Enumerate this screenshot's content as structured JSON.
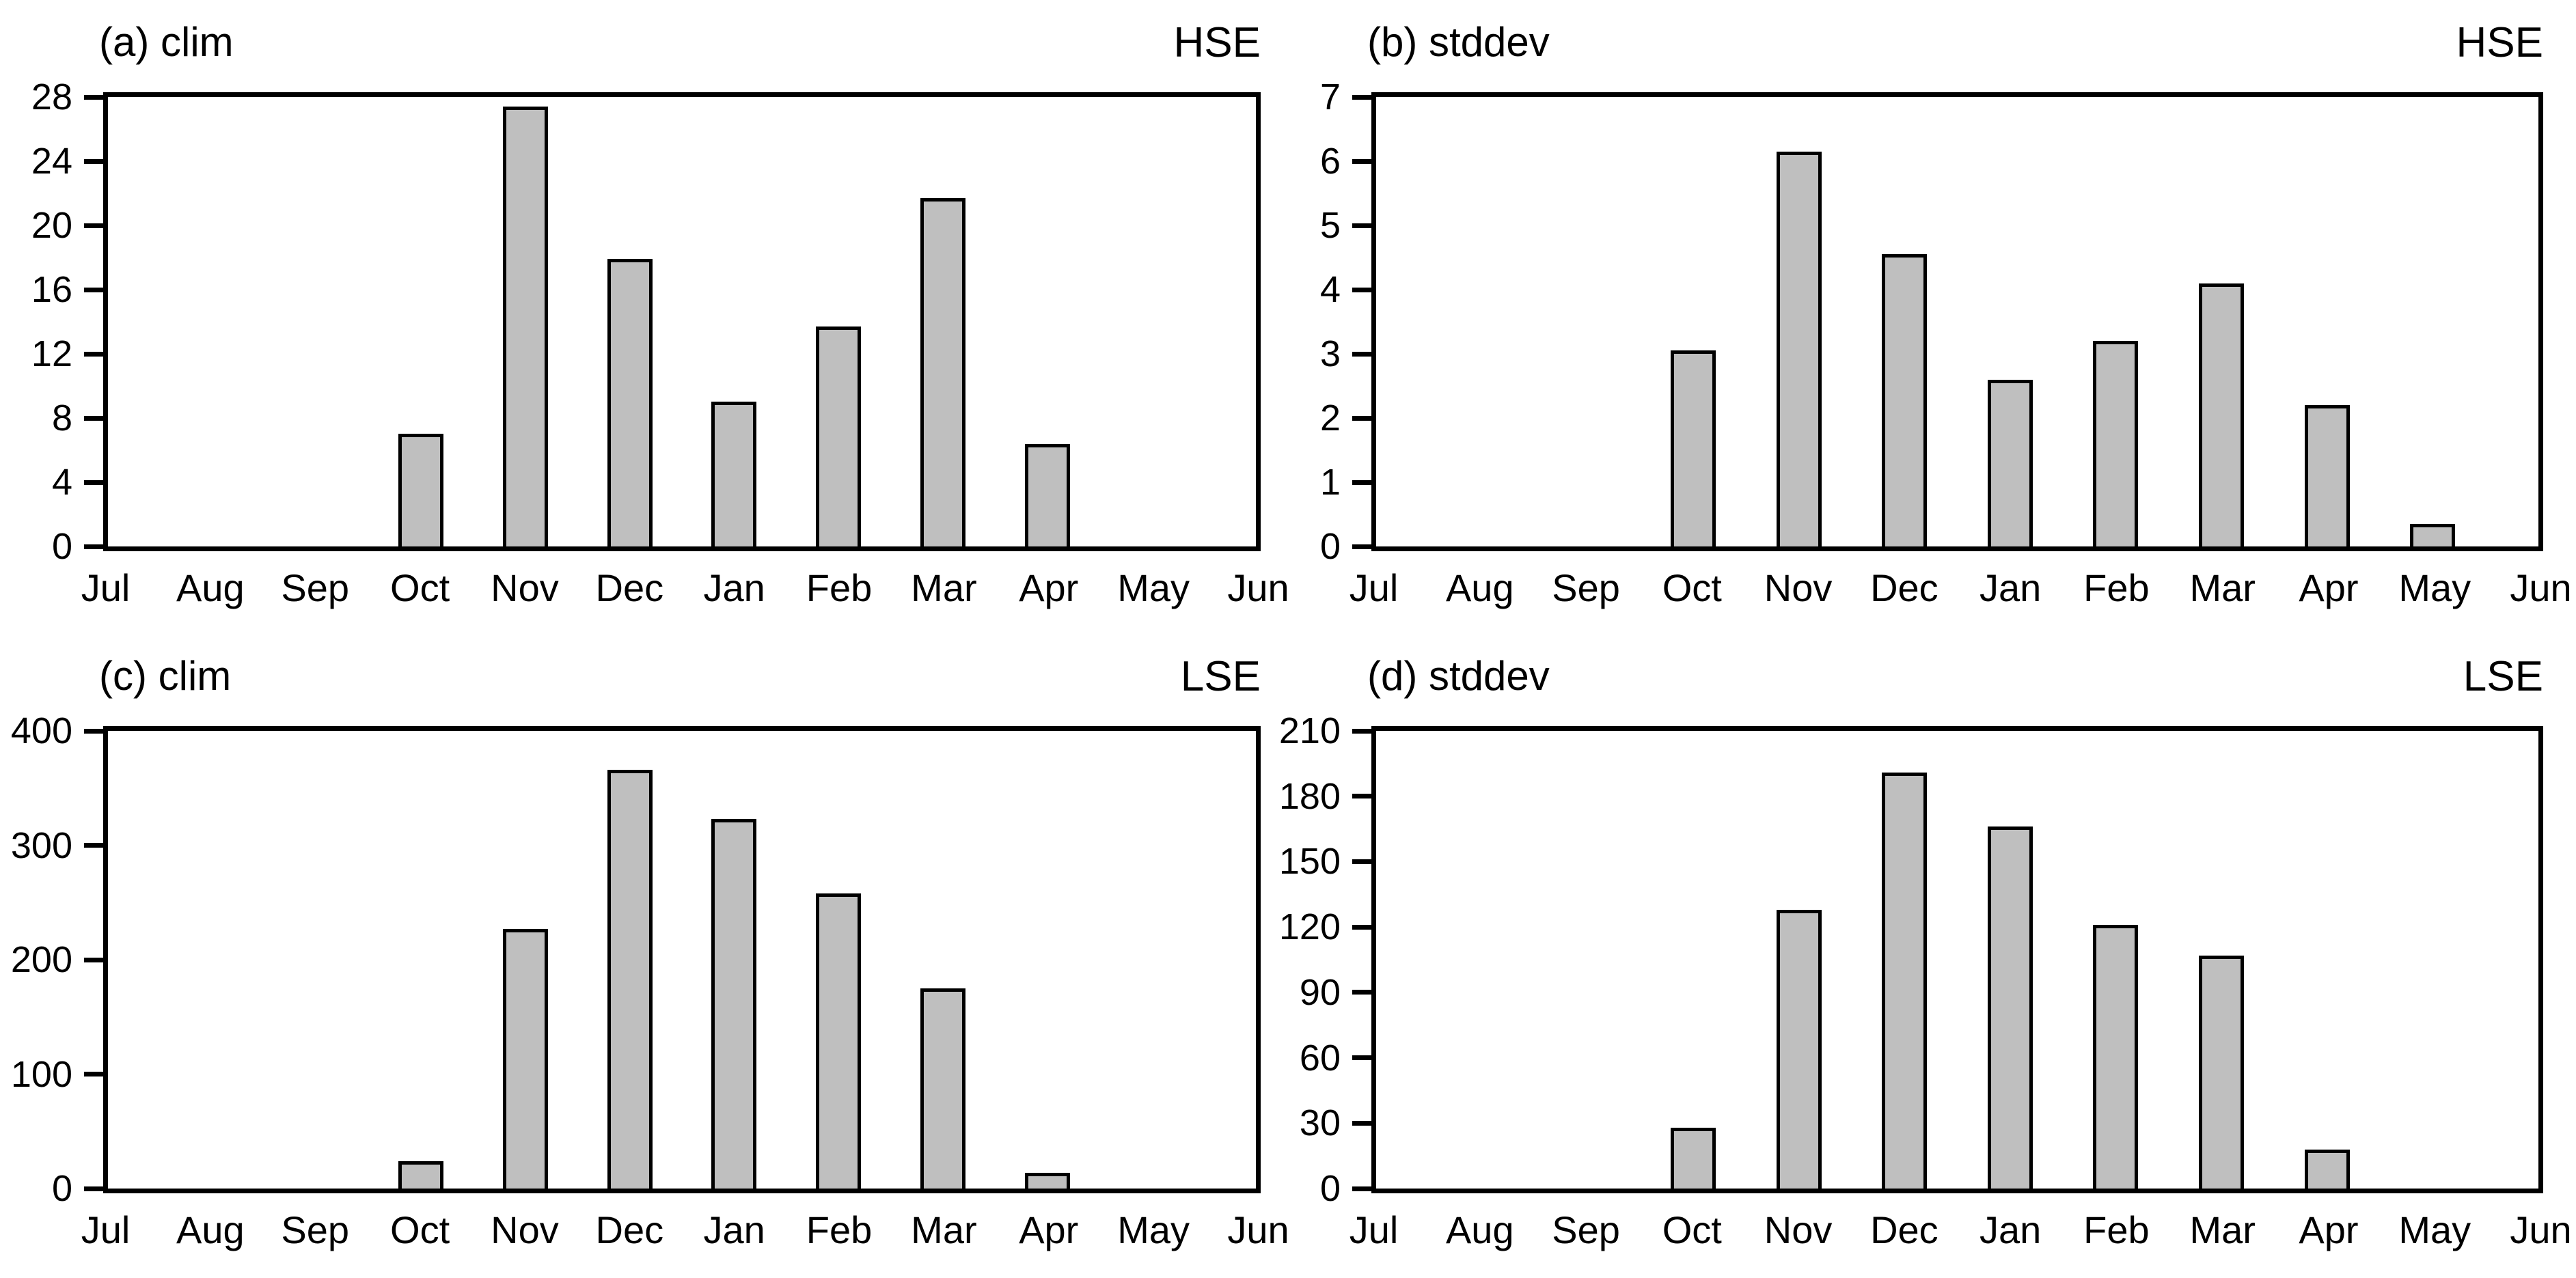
{
  "figure": {
    "months": [
      "Jul",
      "Aug",
      "Sep",
      "Oct",
      "Nov",
      "Dec",
      "Jan",
      "Feb",
      "Mar",
      "Apr",
      "May",
      "Jun"
    ],
    "colors": {
      "bar_fill": "#bfbfbf",
      "bar_edge": "#000000",
      "frame": "#000000",
      "background": "#ffffff"
    }
  },
  "chart_data": [
    {
      "type": "bar",
      "panel_label": "(a) clim",
      "corner_label": "HSE",
      "categories": [
        "Jul",
        "Aug",
        "Sep",
        "Oct",
        "Nov",
        "Dec",
        "Jan",
        "Feb",
        "Mar",
        "Apr",
        "May",
        "Jun"
      ],
      "values": [
        0,
        0,
        0,
        7.0,
        27.4,
        17.9,
        9.0,
        13.7,
        21.7,
        6.4,
        0,
        0
      ],
      "ylim": [
        0,
        28
      ],
      "yticks": [
        0,
        4,
        8,
        12,
        16,
        20,
        24,
        28
      ],
      "xlabel": "",
      "ylabel": "",
      "grid": false,
      "legend": ""
    },
    {
      "type": "bar",
      "panel_label": "(b) stddev",
      "corner_label": "HSE",
      "categories": [
        "Jul",
        "Aug",
        "Sep",
        "Oct",
        "Nov",
        "Dec",
        "Jan",
        "Feb",
        "Mar",
        "Apr",
        "May",
        "Jun"
      ],
      "values": [
        0,
        0,
        0,
        3.05,
        6.15,
        4.55,
        2.6,
        3.2,
        4.1,
        2.2,
        0.35,
        0
      ],
      "ylim": [
        0,
        7
      ],
      "yticks": [
        0,
        1,
        2,
        3,
        4,
        5,
        6,
        7
      ],
      "xlabel": "",
      "ylabel": "",
      "grid": false,
      "legend": ""
    },
    {
      "type": "bar",
      "panel_label": "(c) clim",
      "corner_label": "LSE",
      "categories": [
        "Jul",
        "Aug",
        "Sep",
        "Oct",
        "Nov",
        "Dec",
        "Jan",
        "Feb",
        "Mar",
        "Apr",
        "May",
        "Jun"
      ],
      "values": [
        0,
        0,
        0,
        24,
        227,
        366,
        323,
        258,
        175,
        14,
        0,
        0
      ],
      "ylim": [
        0,
        400
      ],
      "yticks": [
        0,
        100,
        200,
        300,
        400
      ],
      "xlabel": "",
      "ylabel": "",
      "grid": false,
      "legend": ""
    },
    {
      "type": "bar",
      "panel_label": "(d) stddev",
      "corner_label": "LSE",
      "categories": [
        "Jul",
        "Aug",
        "Sep",
        "Oct",
        "Nov",
        "Dec",
        "Jan",
        "Feb",
        "Mar",
        "Apr",
        "May",
        "Jun"
      ],
      "values": [
        0,
        0,
        0,
        28,
        128,
        191,
        166,
        121,
        107,
        18,
        0,
        0
      ],
      "ylim": [
        0,
        210
      ],
      "yticks": [
        0,
        30,
        60,
        90,
        120,
        150,
        180,
        210
      ],
      "xlabel": "",
      "ylabel": "",
      "grid": false,
      "legend": ""
    }
  ]
}
